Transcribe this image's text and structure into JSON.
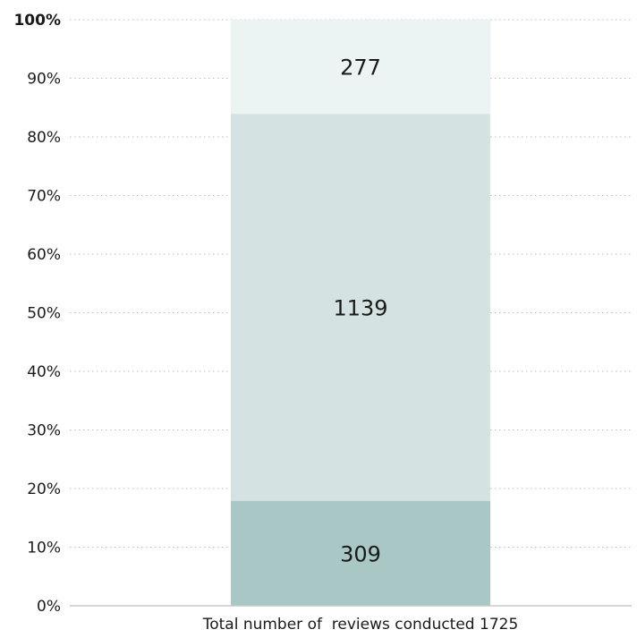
{
  "chart_data": {
    "type": "bar",
    "stacked": true,
    "normalized": true,
    "categories": [
      "Total number of  reviews conducted 1725"
    ],
    "series": [
      {
        "values": [
          309
        ],
        "color": "#a9c8c5"
      },
      {
        "values": [
          1139
        ],
        "color": "#d4e3e2"
      },
      {
        "values": [
          277
        ],
        "color": "#ecf3f3"
      }
    ],
    "y_ticks": [
      "0%",
      "10%",
      "20%",
      "30%",
      "40%",
      "50%",
      "60%",
      "70%",
      "80%",
      "90%",
      "100%"
    ],
    "ylim": [
      0,
      100
    ],
    "y_unit": "%",
    "grid": true,
    "grid_style": "dotted",
    "legend": "none",
    "data_labels": true
  }
}
